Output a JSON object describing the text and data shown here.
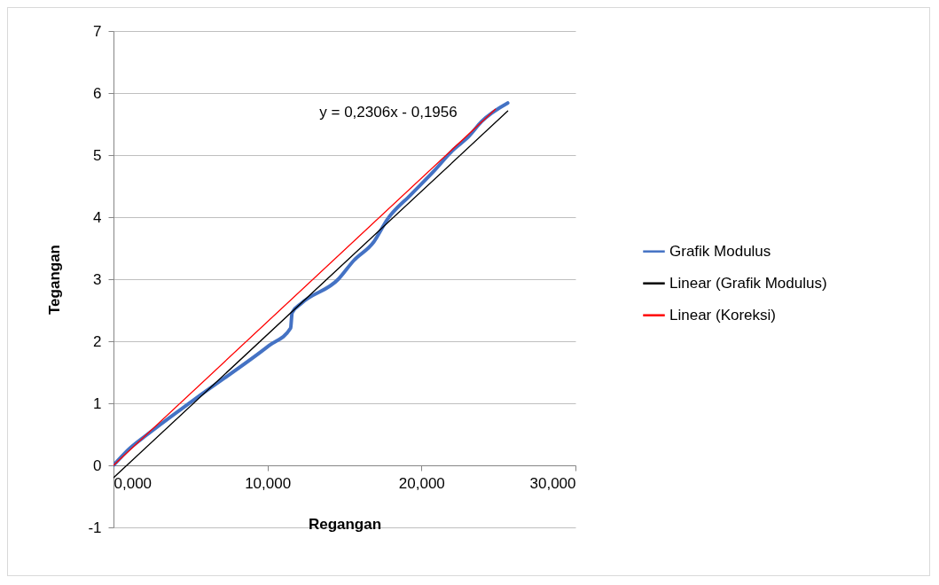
{
  "chart_data": {
    "type": "line",
    "xlabel": "Regangan",
    "ylabel": "Tegangan",
    "series": [
      {
        "name": "Grafik Modulus",
        "color": "#4472c4",
        "x": [
          0,
          1,
          2,
          5.3,
          10.1,
          11.5,
          11.6,
          12.2,
          14.6,
          15.6,
          16.9,
          17.8,
          19.3,
          20.8,
          22.0,
          23.1,
          23.9,
          25.6
        ],
        "values": [
          0,
          0.26,
          0.46,
          1.07,
          1.93,
          2.21,
          2.46,
          2.61,
          3.0,
          3.3,
          3.6,
          3.97,
          4.36,
          4.74,
          5.07,
          5.31,
          5.54,
          5.84
        ]
      },
      {
        "name": "Linear (Grafik Modulus)",
        "color": "#000000",
        "x": [
          0,
          25.6
        ],
        "values": [
          -0.2,
          5.71
        ]
      },
      {
        "name": "Linear (Koreksi)",
        "color": "#ff0000",
        "x": [
          0,
          24.8
        ],
        "values": [
          0,
          5.74
        ]
      }
    ],
    "xlim": [
      0,
      30
    ],
    "ylim": [
      -1,
      7
    ],
    "xticks": [
      {
        "value": 0,
        "label": "0,000"
      },
      {
        "value": 10,
        "label": "10,000"
      },
      {
        "value": 20,
        "label": "20,000"
      },
      {
        "value": 30,
        "label": "30,000"
      }
    ],
    "yticks": [
      -1,
      0,
      1,
      2,
      3,
      4,
      5,
      6,
      7
    ],
    "grid": "y",
    "legend": "right",
    "line_style": "solid",
    "annotations": [
      "y = 0,2306x - 0,1956"
    ]
  }
}
